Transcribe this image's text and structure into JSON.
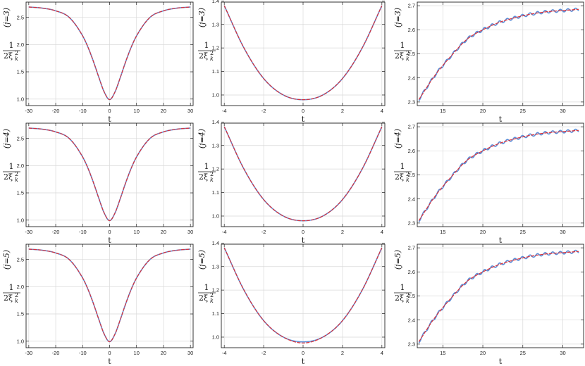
{
  "chart_data": [
    {
      "type": "line",
      "row_label": "(j=3)",
      "xlabel": "t",
      "ylabel_num": "1",
      "ylabel_den": "2ξ",
      "ylabel_sup": "2",
      "ylabel_sub": "k",
      "xlim": [
        -31,
        31
      ],
      "ylim": [
        0.88,
        2.78
      ],
      "xticks": [
        -30,
        -20,
        -10,
        0,
        10,
        20,
        30
      ],
      "xtick_labels": [
        "-30",
        "-20",
        "-10",
        "0",
        "10",
        "20",
        "30"
      ],
      "yticks": [
        1.0,
        1.5,
        2.0,
        2.5
      ],
      "ytick_labels": [
        "1.0",
        "1.5",
        "2.0",
        "2.5"
      ],
      "x": [
        -30,
        -25,
        -20,
        -15,
        -10,
        -8,
        -6,
        -4,
        -2,
        0,
        2,
        4,
        6,
        8,
        10,
        15,
        20,
        25,
        30
      ],
      "series": [
        {
          "values": [
            2.69,
            2.67,
            2.62,
            2.5,
            2.16,
            1.95,
            1.69,
            1.4,
            1.13,
            0.99,
            1.13,
            1.4,
            1.69,
            1.95,
            2.16,
            2.5,
            2.62,
            2.67,
            2.69
          ]
        },
        {
          "values": [
            2.69,
            2.67,
            2.62,
            2.5,
            2.16,
            1.95,
            1.69,
            1.4,
            1.13,
            0.99,
            1.13,
            1.4,
            1.69,
            1.95,
            2.16,
            2.5,
            2.62,
            2.67,
            2.69
          ]
        }
      ]
    },
    {
      "type": "line",
      "row_label": "(j=3)",
      "xlabel": "t",
      "ylabel_num": "1",
      "ylabel_den": "2ξ",
      "ylabel_sup": "2",
      "ylabel_sub": "k",
      "xlim": [
        -4.15,
        4.15
      ],
      "ylim": [
        0.955,
        1.395
      ],
      "xticks": [
        -4,
        -2,
        0,
        2,
        4
      ],
      "xtick_labels": [
        "-4",
        "-2",
        "0",
        "2",
        "4"
      ],
      "yticks": [
        1.0,
        1.1,
        1.2,
        1.3,
        1.4
      ],
      "ytick_labels": [
        "1.0",
        "1.1",
        "1.2",
        "1.3",
        "1.4"
      ],
      "x": [
        -4,
        -3,
        -2,
        -1,
        0,
        1,
        2,
        3,
        4
      ],
      "series": [
        {
          "values": [
            1.38,
            1.2,
            1.07,
            1.0,
            0.98,
            1.0,
            1.07,
            1.2,
            1.38
          ]
        },
        {
          "values": [
            1.38,
            1.2,
            1.07,
            1.0,
            0.98,
            1.0,
            1.07,
            1.2,
            1.38
          ]
        }
      ]
    },
    {
      "type": "line",
      "row_label": "(j=3)",
      "xlabel": "t",
      "ylabel_num": "1",
      "ylabel_den": "2ξ",
      "ylabel_sup": "2",
      "ylabel_sub": "k",
      "xlim": [
        11.8,
        32.6
      ],
      "ylim": [
        2.285,
        2.715
      ],
      "xticks": [
        15,
        20,
        25,
        30
      ],
      "xtick_labels": [
        "15",
        "20",
        "25",
        "30"
      ],
      "yticks": [
        2.3,
        2.4,
        2.5,
        2.6,
        2.7
      ],
      "ytick_labels": [
        "2.3",
        "2.4",
        "2.5",
        "2.6",
        "2.7"
      ],
      "x": [
        12,
        14,
        16,
        18,
        20,
        22,
        24,
        26,
        28,
        30,
        32
      ],
      "series": [
        {
          "values": [
            2.31,
            2.41,
            2.49,
            2.56,
            2.6,
            2.63,
            2.65,
            2.665,
            2.675,
            2.68,
            2.685
          ]
        },
        {
          "values": [
            2.31,
            2.41,
            2.49,
            2.56,
            2.6,
            2.63,
            2.65,
            2.665,
            2.675,
            2.68,
            2.685
          ]
        }
      ]
    },
    {
      "type": "line",
      "row_label": "(j=4)",
      "xlabel": "t",
      "ylabel_num": "1",
      "ylabel_den": "2ξ",
      "ylabel_sup": "2",
      "ylabel_sub": "k",
      "xlim": [
        -31,
        31
      ],
      "ylim": [
        0.88,
        2.78
      ],
      "xticks": [
        -30,
        -20,
        -10,
        0,
        10,
        20,
        30
      ],
      "xtick_labels": [
        "-30",
        "-20",
        "-10",
        "0",
        "10",
        "20",
        "30"
      ],
      "yticks": [
        1.0,
        1.5,
        2.0,
        2.5
      ],
      "ytick_labels": [
        "1.0",
        "1.5",
        "2.0",
        "2.5"
      ],
      "x": [
        -30,
        -25,
        -20,
        -15,
        -10,
        -8,
        -6,
        -4,
        -2,
        0,
        2,
        4,
        6,
        8,
        10,
        15,
        20,
        25,
        30
      ],
      "series": [
        {
          "values": [
            2.69,
            2.67,
            2.62,
            2.5,
            2.16,
            1.95,
            1.69,
            1.4,
            1.13,
            0.99,
            1.13,
            1.4,
            1.69,
            1.95,
            2.16,
            2.5,
            2.62,
            2.67,
            2.69
          ]
        },
        {
          "values": [
            2.69,
            2.67,
            2.62,
            2.5,
            2.16,
            1.95,
            1.69,
            1.4,
            1.13,
            0.99,
            1.13,
            1.4,
            1.69,
            1.95,
            2.16,
            2.5,
            2.62,
            2.67,
            2.69
          ]
        }
      ]
    },
    {
      "type": "line",
      "row_label": "(j=4)",
      "xlabel": "t",
      "ylabel_num": "1",
      "ylabel_den": "2ξ",
      "ylabel_sup": "2",
      "ylabel_sub": "k",
      "xlim": [
        -4.15,
        4.15
      ],
      "ylim": [
        0.955,
        1.395
      ],
      "xticks": [
        -4,
        -2,
        0,
        2,
        4
      ],
      "xtick_labels": [
        "-4",
        "-2",
        "0",
        "2",
        "4"
      ],
      "yticks": [
        1.0,
        1.1,
        1.2,
        1.3,
        1.4
      ],
      "ytick_labels": [
        "1.0",
        "1.1",
        "1.2",
        "1.3",
        "1.4"
      ],
      "x": [
        -4,
        -3,
        -2,
        -1,
        0,
        1,
        2,
        3,
        4
      ],
      "series": [
        {
          "values": [
            1.38,
            1.2,
            1.07,
            1.0,
            0.98,
            1.0,
            1.07,
            1.2,
            1.38
          ]
        },
        {
          "values": [
            1.38,
            1.2,
            1.07,
            1.0,
            0.98,
            1.0,
            1.07,
            1.2,
            1.38
          ]
        }
      ]
    },
    {
      "type": "line",
      "row_label": "(j=4)",
      "xlabel": "t",
      "ylabel_num": "1",
      "ylabel_den": "2ξ",
      "ylabel_sup": "2",
      "ylabel_sub": "k",
      "xlim": [
        11.8,
        32.6
      ],
      "ylim": [
        2.285,
        2.715
      ],
      "xticks": [
        15,
        20,
        25,
        30
      ],
      "xtick_labels": [
        "15",
        "20",
        "25",
        "30"
      ],
      "yticks": [
        2.3,
        2.4,
        2.5,
        2.6,
        2.7
      ],
      "ytick_labels": [
        "2.3",
        "2.4",
        "2.5",
        "2.6",
        "2.7"
      ],
      "x": [
        12,
        14,
        16,
        18,
        20,
        22,
        24,
        26,
        28,
        30,
        32
      ],
      "series": [
        {
          "values": [
            2.31,
            2.41,
            2.49,
            2.56,
            2.6,
            2.63,
            2.65,
            2.665,
            2.675,
            2.68,
            2.685
          ]
        },
        {
          "values": [
            2.31,
            2.41,
            2.49,
            2.56,
            2.6,
            2.63,
            2.65,
            2.665,
            2.675,
            2.68,
            2.685
          ]
        }
      ]
    },
    {
      "type": "line",
      "row_label": "(j=5)",
      "xlabel": "t",
      "ylabel_num": "1",
      "ylabel_den": "2ξ",
      "ylabel_sup": "2",
      "ylabel_sub": "k",
      "xlim": [
        -31,
        31
      ],
      "ylim": [
        0.88,
        2.78
      ],
      "xticks": [
        -30,
        -20,
        -10,
        0,
        10,
        20,
        30
      ],
      "xtick_labels": [
        "-30",
        "-20",
        "-10",
        "0",
        "10",
        "20",
        "30"
      ],
      "yticks": [
        1.0,
        1.5,
        2.0,
        2.5
      ],
      "ytick_labels": [
        "1.0",
        "1.5",
        "2.0",
        "2.5"
      ],
      "x": [
        -30,
        -25,
        -20,
        -15,
        -10,
        -8,
        -6,
        -4,
        -2,
        0,
        2,
        4,
        6,
        8,
        10,
        15,
        20,
        25,
        30
      ],
      "series": [
        {
          "values": [
            2.69,
            2.67,
            2.62,
            2.5,
            2.16,
            1.95,
            1.69,
            1.4,
            1.13,
            0.99,
            1.13,
            1.4,
            1.69,
            1.95,
            2.16,
            2.5,
            2.62,
            2.67,
            2.69
          ]
        },
        {
          "values": [
            2.69,
            2.67,
            2.62,
            2.5,
            2.16,
            1.95,
            1.69,
            1.4,
            1.13,
            0.99,
            1.13,
            1.4,
            1.69,
            1.95,
            2.16,
            2.5,
            2.62,
            2.67,
            2.69
          ]
        }
      ]
    },
    {
      "type": "line",
      "row_label": "(j=5)",
      "xlabel": "t",
      "ylabel_num": "1",
      "ylabel_den": "2ξ",
      "ylabel_sup": "2",
      "ylabel_sub": "k",
      "xlim": [
        -4.15,
        4.15
      ],
      "ylim": [
        0.955,
        1.395
      ],
      "xticks": [
        -4,
        -2,
        0,
        2,
        4
      ],
      "xtick_labels": [
        "-4",
        "-2",
        "0",
        "2",
        "4"
      ],
      "yticks": [
        1.0,
        1.1,
        1.2,
        1.3,
        1.4
      ],
      "ytick_labels": [
        "1.0",
        "1.1",
        "1.2",
        "1.3",
        "1.4"
      ],
      "x": [
        -4,
        -3,
        -2,
        -1,
        0,
        1,
        2,
        3,
        4
      ],
      "series": [
        {
          "values": [
            1.38,
            1.2,
            1.07,
            1.0,
            0.98,
            1.0,
            1.07,
            1.2,
            1.38
          ]
        },
        {
          "values": [
            1.38,
            1.2,
            1.07,
            1.0,
            0.975,
            1.0,
            1.07,
            1.2,
            1.38
          ]
        }
      ]
    },
    {
      "type": "line",
      "row_label": "(j=5)",
      "xlabel": "t",
      "ylabel_num": "1",
      "ylabel_den": "2ξ",
      "ylabel_sup": "2",
      "ylabel_sub": "k",
      "xlim": [
        11.8,
        32.6
      ],
      "ylim": [
        2.285,
        2.715
      ],
      "xticks": [
        15,
        20,
        25,
        30
      ],
      "xtick_labels": [
        "15",
        "20",
        "25",
        "30"
      ],
      "yticks": [
        2.3,
        2.4,
        2.5,
        2.6,
        2.7
      ],
      "ytick_labels": [
        "2.3",
        "2.4",
        "2.5",
        "2.6",
        "2.7"
      ],
      "x": [
        12,
        14,
        16,
        18,
        20,
        22,
        24,
        26,
        28,
        30,
        32
      ],
      "series": [
        {
          "values": [
            2.31,
            2.41,
            2.49,
            2.56,
            2.6,
            2.63,
            2.65,
            2.665,
            2.675,
            2.68,
            2.685
          ]
        },
        {
          "values": [
            2.31,
            2.41,
            2.49,
            2.56,
            2.6,
            2.63,
            2.65,
            2.665,
            2.675,
            2.68,
            2.685
          ]
        }
      ]
    }
  ],
  "colors": {
    "series_1": "#5b8fd8",
    "series_2": "#d9303a",
    "grid": "#d9d9d9",
    "axis": "#222222"
  },
  "grid": true
}
